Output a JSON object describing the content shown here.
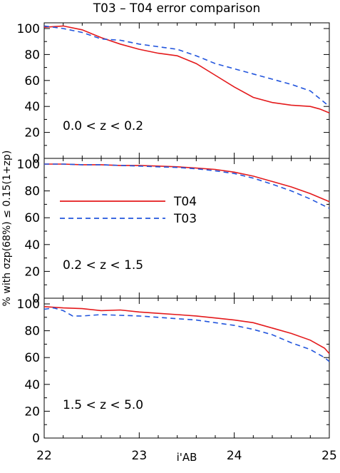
{
  "chart_data": {
    "type": "line",
    "title": "T03 – T04 error comparison",
    "xlabel": "i'AB",
    "ylabel": "% with σzp(68%) ≤ 0.15(1+zp)",
    "xlim": [
      22,
      25
    ],
    "x_ticks": [
      "22",
      "23",
      "24",
      "25"
    ],
    "y_ticks": [
      "0",
      "20",
      "40",
      "60",
      "80",
      "100"
    ],
    "legend": {
      "placement": "middle-panel-left",
      "entries": [
        {
          "name": "T04",
          "style": "solid",
          "color": "#e41a1c"
        },
        {
          "name": "T03",
          "style": "dashed",
          "color": "#2255dd"
        }
      ]
    },
    "panels": [
      {
        "label": "0.0 < z < 0.2",
        "ylim": [
          0,
          100
        ],
        "series": [
          {
            "name": "T04",
            "x": [
              22.0,
              22.2,
              22.4,
              22.6,
              22.8,
              23.0,
              23.2,
              23.4,
              23.6,
              23.8,
              24.0,
              24.2,
              24.4,
              24.6,
              24.8,
              24.9,
              25.0
            ],
            "y": [
              101,
              102,
              99,
              93,
              88,
              84,
              81,
              79,
              73,
              64,
              55,
              47,
              43,
              41,
              40,
              38,
              35
            ]
          },
          {
            "name": "T03",
            "x": [
              22.0,
              22.2,
              22.4,
              22.6,
              22.8,
              23.0,
              23.2,
              23.4,
              23.6,
              23.8,
              24.0,
              24.2,
              24.4,
              24.6,
              24.8,
              24.9,
              25.0
            ],
            "y": [
              102,
              100,
              97,
              92,
              91,
              88,
              86,
              84,
              79,
              73,
              69,
              65,
              61,
              57,
              52,
              46,
              40
            ]
          }
        ]
      },
      {
        "label": "0.2 < z < 1.5",
        "ylim": [
          0,
          100
        ],
        "series": [
          {
            "name": "T04",
            "x": [
              22.0,
              22.2,
              22.4,
              22.6,
              22.8,
              23.0,
              23.2,
              23.4,
              23.6,
              23.8,
              24.0,
              24.2,
              24.4,
              24.6,
              24.8,
              25.0
            ],
            "y": [
              100,
              100,
              99.5,
              99.5,
              99,
              99,
              98.5,
              98,
              97,
              96,
              94,
              91,
              87,
              83,
              78,
              72
            ]
          },
          {
            "name": "T03",
            "x": [
              22.0,
              22.2,
              22.4,
              22.6,
              22.8,
              23.0,
              23.2,
              23.4,
              23.6,
              23.8,
              24.0,
              24.2,
              24.4,
              24.6,
              24.8,
              25.0
            ],
            "y": [
              100,
              100,
              99.5,
              99.5,
              99,
              98.5,
              98,
              97.5,
              96.5,
              95,
              93,
              89.5,
              85,
              80,
              74,
              67
            ]
          }
        ]
      },
      {
        "label": "1.5 < z < 5.0",
        "ylim": [
          0,
          100
        ],
        "series": [
          {
            "name": "T04",
            "x": [
              22.0,
              22.2,
              22.4,
              22.6,
              22.8,
              23.0,
              23.2,
              23.4,
              23.6,
              23.8,
              24.0,
              24.2,
              24.4,
              24.6,
              24.8,
              24.95,
              25.0
            ],
            "y": [
              98,
              97,
              96.5,
              95,
              95.5,
              94,
              93,
              92,
              91,
              89.5,
              88,
              86,
              82,
              78,
              73,
              67,
              63
            ]
          },
          {
            "name": "T03",
            "x": [
              22.0,
              22.1,
              22.2,
              22.3,
              22.4,
              22.6,
              22.8,
              23.0,
              23.2,
              23.4,
              23.6,
              23.8,
              24.0,
              24.2,
              24.4,
              24.6,
              24.8,
              24.95,
              25.0
            ],
            "y": [
              96,
              97,
              95,
              91,
              91,
              92,
              91.5,
              91,
              90,
              89,
              88,
              86,
              84,
              81,
              77,
              71,
              66,
              60,
              57
            ]
          }
        ]
      }
    ]
  }
}
